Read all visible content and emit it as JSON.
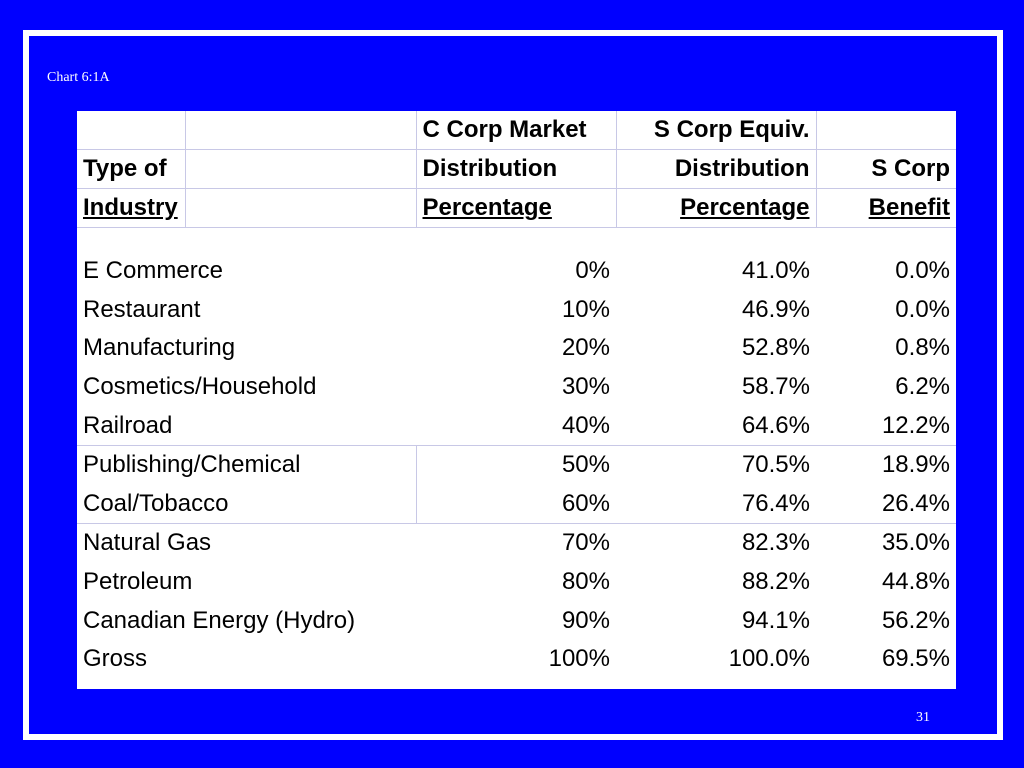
{
  "slide": {
    "label": "Chart 6:1A",
    "page_number": "31"
  },
  "table": {
    "header_row1": [
      "",
      "",
      "C Corp Market",
      "S Corp Equiv.",
      ""
    ],
    "header_row2": [
      "Type of",
      "",
      "Distribution",
      "Distribution",
      "S Corp"
    ],
    "header_row3": [
      "Industry",
      "",
      "Percentage",
      "Percentage",
      "Benefit"
    ],
    "rows": [
      {
        "industry": "E Commerce",
        "c_corp": "0%",
        "s_corp": "41.0%",
        "benefit": "0.0%"
      },
      {
        "industry": "Restaurant",
        "c_corp": "10%",
        "s_corp": "46.9%",
        "benefit": "0.0%"
      },
      {
        "industry": "Manufacturing",
        "c_corp": "20%",
        "s_corp": "52.8%",
        "benefit": "0.8%"
      },
      {
        "industry": "Cosmetics/Household",
        "c_corp": "30%",
        "s_corp": "58.7%",
        "benefit": "6.2%"
      },
      {
        "industry": "Railroad",
        "c_corp": "40%",
        "s_corp": "64.6%",
        "benefit": "12.2%"
      },
      {
        "industry": "Publishing/Chemical",
        "c_corp": "50%",
        "s_corp": "70.5%",
        "benefit": "18.9%"
      },
      {
        "industry": "Coal/Tobacco",
        "c_corp": "60%",
        "s_corp": "76.4%",
        "benefit": "26.4%"
      },
      {
        "industry": "Natural Gas",
        "c_corp": "70%",
        "s_corp": "82.3%",
        "benefit": "35.0%"
      },
      {
        "industry": "Petroleum",
        "c_corp": "80%",
        "s_corp": "88.2%",
        "benefit": "44.8%"
      },
      {
        "industry": "Canadian Energy (Hydro)",
        "c_corp": "90%",
        "s_corp": "94.1%",
        "benefit": "56.2%"
      },
      {
        "industry": "Gross",
        "c_corp": "100%",
        "s_corp": "100.0%",
        "benefit": "69.5%"
      }
    ]
  }
}
